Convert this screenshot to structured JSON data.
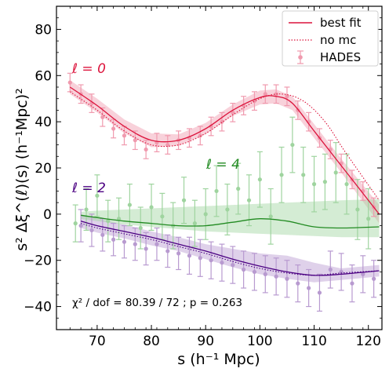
{
  "chart_data": {
    "type": "scatter",
    "title": "",
    "xlabel": "s (h⁻¹ Mpc)",
    "ylabel": "s² Δξ^(ℓ)(s) (h⁻¹Mpc)²",
    "xlim": [
      62.5,
      122.5
    ],
    "ylim": [
      -50,
      90
    ],
    "xticks": [
      70,
      80,
      90,
      100,
      110,
      120
    ],
    "yticks": [
      -40,
      -20,
      0,
      20,
      40,
      60,
      80
    ],
    "grid": false,
    "legend": {
      "position": "top-right",
      "entries": [
        {
          "label": "best fit",
          "style": "solid-line"
        },
        {
          "label": "no mc",
          "style": "dotted-line"
        },
        {
          "label": "HADES",
          "style": "errorbar-marker"
        }
      ]
    },
    "annotations": {
      "l0": "ℓ = 0",
      "l2": "ℓ = 2",
      "l4": "ℓ = 4",
      "stats": "χ² / dof = 80.39 / 72 ; p = 0.263"
    },
    "colors": {
      "l0": "#dc143c",
      "l2": "#4b0082",
      "l4": "#228b22",
      "l0_data": "#f09aae",
      "l2_data": "#b89ad0",
      "l4_data": "#9fd49f"
    },
    "series": [
      {
        "multipole": "l0",
        "data": {
          "x": [
            65,
            67,
            69,
            71,
            73,
            75,
            77,
            79,
            81,
            83,
            85,
            87,
            89,
            91,
            93,
            95,
            97,
            99,
            101,
            103,
            105,
            107,
            109,
            111,
            113,
            115,
            117,
            119,
            121
          ],
          "y": [
            57,
            52,
            48,
            42,
            37,
            34,
            32,
            28,
            31,
            30,
            32,
            33,
            34,
            38,
            40,
            44,
            47,
            49,
            52,
            52,
            51,
            45,
            40,
            33,
            28,
            22,
            15,
            10,
            3
          ],
          "err": [
            4,
            4,
            4,
            4,
            4,
            4,
            4,
            4,
            4,
            4,
            4,
            4,
            4,
            4,
            4,
            4,
            4,
            4,
            4,
            4,
            4,
            4,
            4,
            4,
            4,
            4,
            4,
            4,
            4
          ]
        },
        "best_fit": {
          "x": [
            65,
            70,
            75,
            80,
            85,
            90,
            95,
            100,
            103,
            106,
            110,
            115,
            122
          ],
          "y": [
            55,
            47,
            38,
            32,
            32,
            37,
            45,
            50.5,
            51,
            48,
            36,
            21,
            0
          ]
        },
        "no_mc": {
          "x": [
            65,
            70,
            75,
            80,
            85,
            90,
            95,
            100,
            104,
            108,
            112,
            116,
            122
          ],
          "y": [
            53,
            45,
            36,
            30,
            30,
            35,
            43,
            50,
            52,
            49,
            40,
            26,
            6
          ]
        },
        "band": {
          "x": [
            65,
            70,
            75,
            80,
            85,
            90,
            95,
            100,
            103,
            106,
            110,
            115,
            122
          ],
          "lower": [
            52,
            44,
            35,
            29,
            29.5,
            34.5,
            42.5,
            47.5,
            48,
            45,
            33,
            18,
            -4
          ],
          "upper": [
            58,
            50,
            41,
            35,
            34.5,
            39.5,
            47.5,
            53.5,
            54,
            51,
            39,
            24,
            4
          ]
        }
      },
      {
        "multipole": "l2",
        "data": {
          "x": [
            67,
            69,
            71,
            73,
            75,
            77,
            79,
            81,
            83,
            85,
            87,
            89,
            91,
            93,
            95,
            97,
            99,
            101,
            103,
            105,
            107,
            109,
            111,
            113,
            115,
            117,
            119,
            121
          ],
          "y": [
            -5,
            -7,
            -9,
            -11,
            -12,
            -13,
            -15,
            -13,
            -16,
            -17,
            -18,
            -19,
            -20,
            -21,
            -22,
            -24,
            -25,
            -26,
            -27,
            -28,
            -30,
            -32,
            -34,
            -24,
            -25,
            -30,
            -26,
            -28
          ],
          "err": [
            7,
            7,
            7,
            7,
            7,
            7,
            7,
            7,
            7,
            7,
            8,
            8,
            8,
            8,
            8,
            8,
            8,
            8,
            8,
            8,
            8,
            8,
            8,
            8,
            8,
            8,
            8,
            8
          ]
        },
        "best_fit": {
          "x": [
            67,
            70,
            75,
            80,
            85,
            90,
            95,
            100,
            105,
            110,
            115,
            122
          ],
          "y": [
            -3,
            -5,
            -7.5,
            -10,
            -13,
            -16,
            -19.5,
            -22.5,
            -25,
            -26.5,
            -26,
            -24.5
          ]
        },
        "no_mc": {
          "x": [
            67,
            70,
            75,
            80,
            85,
            90,
            95,
            100,
            105,
            110,
            115,
            122
          ],
          "y": [
            -4,
            -6,
            -8.5,
            -11,
            -14,
            -17,
            -20.5,
            -23.5,
            -25.5,
            -26.5,
            -25.5,
            -24.5
          ]
        },
        "band": {
          "x": [
            67,
            70,
            75,
            80,
            85,
            90,
            95,
            100,
            105,
            110,
            115,
            122
          ],
          "lower": [
            -6,
            -8,
            -10.5,
            -13.5,
            -16,
            -19.5,
            -23,
            -26,
            -28,
            -29.5,
            -28.5,
            -27
          ],
          "upper": [
            0,
            -2,
            -4.5,
            -7.5,
            -10,
            -13,
            -15,
            -17,
            -18,
            -21,
            -23.5,
            -22
          ]
        }
      },
      {
        "multipole": "l4",
        "data": {
          "x": [
            66,
            68,
            70,
            72,
            74,
            76,
            78,
            80,
            82,
            84,
            86,
            88,
            90,
            92,
            94,
            96,
            98,
            100,
            102,
            104,
            106,
            108,
            110,
            112,
            114,
            116,
            118,
            120
          ],
          "y": [
            -4,
            2,
            8,
            -3,
            -2,
            4,
            -6,
            3,
            -1,
            -5,
            6,
            -4,
            0,
            10,
            2,
            11,
            6,
            15,
            -1,
            17,
            30,
            17,
            13,
            14,
            18,
            13,
            2,
            -2
          ],
          "err": [
            8,
            9,
            9,
            9,
            9,
            9,
            9,
            10,
            10,
            10,
            10,
            10,
            11,
            11,
            11,
            11,
            11,
            12,
            12,
            12,
            12,
            12,
            12,
            12,
            13,
            13,
            13,
            13
          ]
        },
        "best_fit": {
          "x": [
            67,
            70,
            75,
            80,
            85,
            90,
            95,
            100,
            105,
            110,
            115,
            122
          ],
          "y": [
            -0.5,
            -1.5,
            -3,
            -4,
            -5,
            -5,
            -3.5,
            -2,
            -3,
            -5.5,
            -6,
            -5.5
          ]
        },
        "band": {
          "x": [
            67,
            70,
            75,
            80,
            85,
            90,
            95,
            100,
            105,
            110,
            115,
            122
          ],
          "lower": [
            -2,
            -3,
            -4.5,
            -5.5,
            -6.5,
            -7.5,
            -8,
            -8.5,
            -9,
            -9.5,
            -10,
            -10
          ],
          "upper": [
            1,
            1.5,
            2,
            2.5,
            3,
            3.5,
            4,
            4.5,
            5,
            5.5,
            6,
            6.5
          ]
        }
      }
    ]
  }
}
